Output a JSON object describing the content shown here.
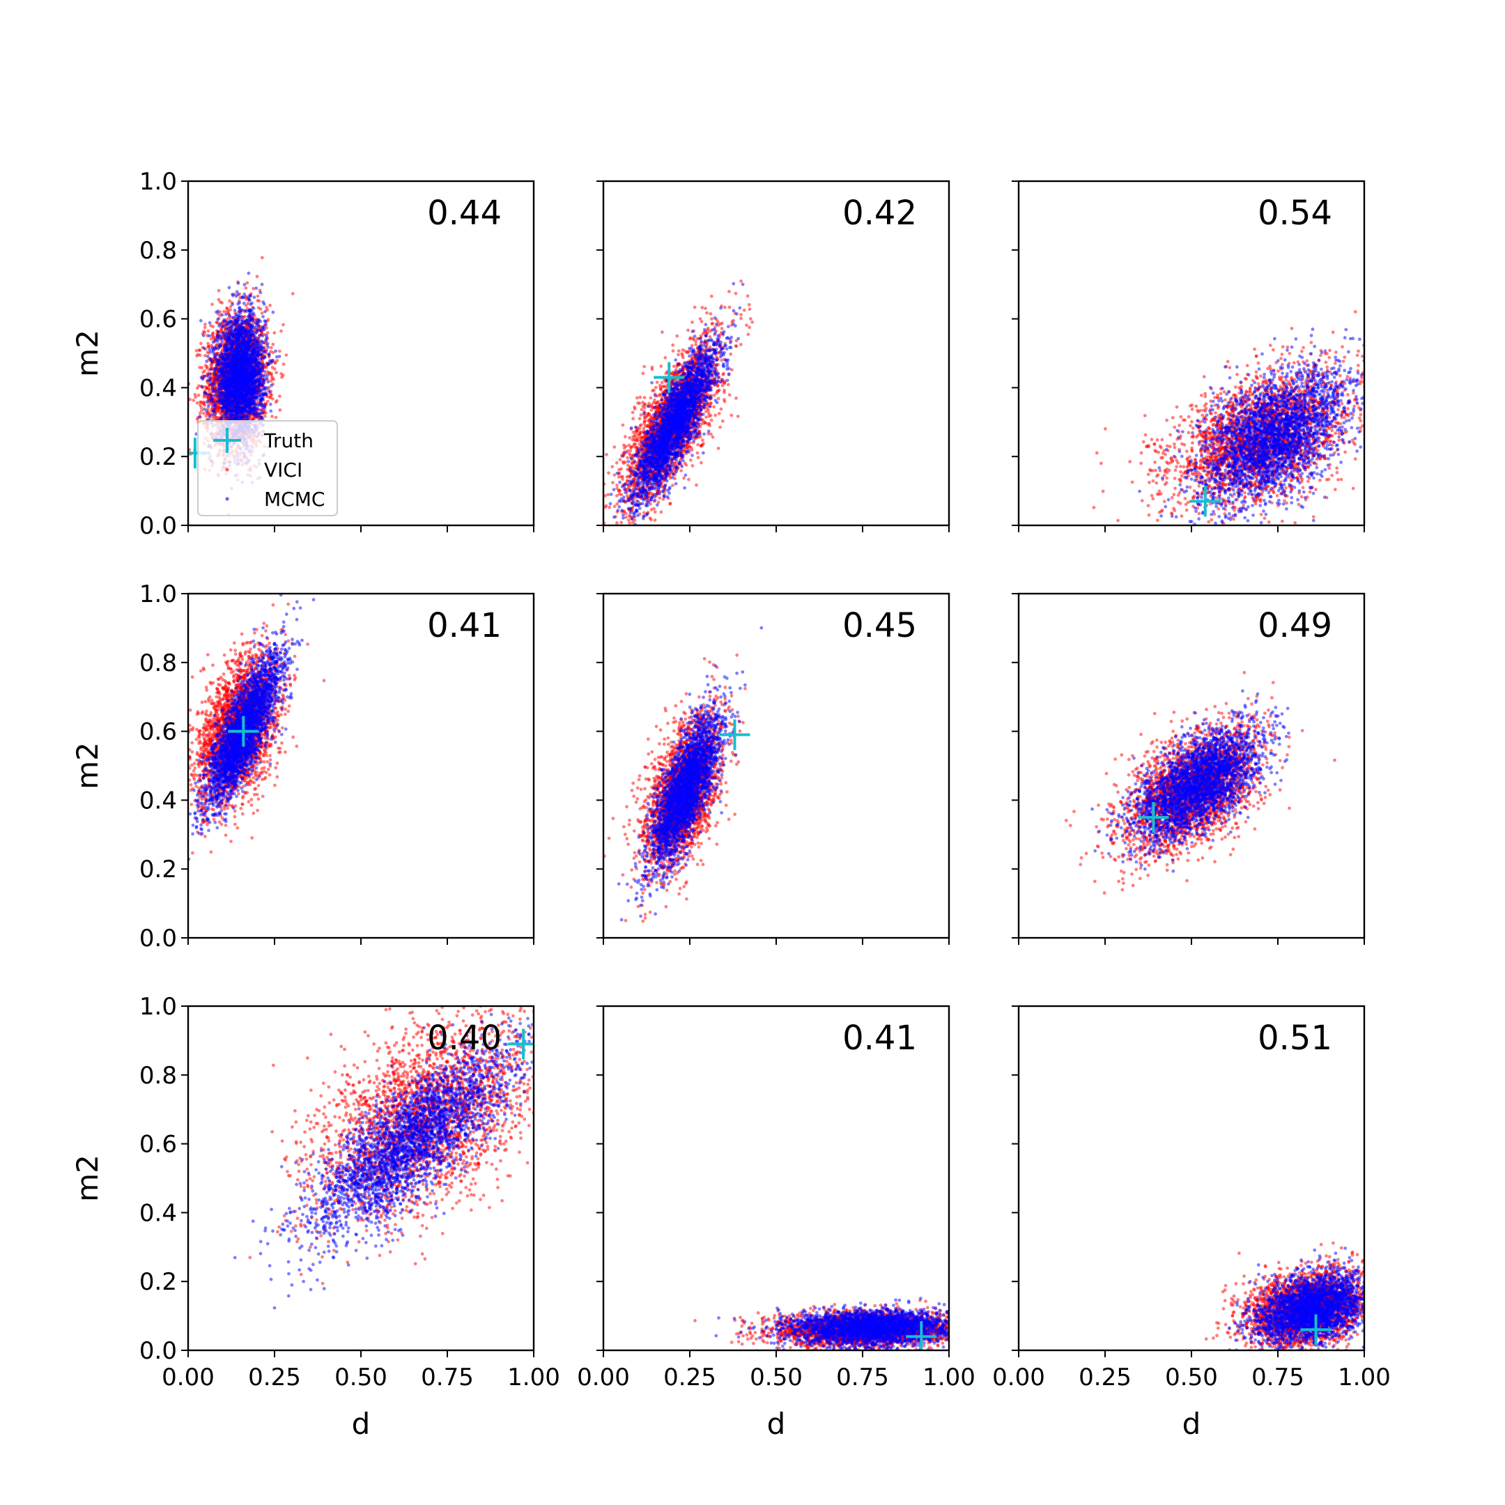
{
  "chart_data": {
    "type": "scatter",
    "layout": "3x3 grid",
    "xlabel": "d",
    "ylabel": "m2",
    "xlim": [
      0,
      1
    ],
    "ylim": [
      0,
      1
    ],
    "x_ticks": [
      "0.00",
      "0.25",
      "0.50",
      "0.75",
      "1.00"
    ],
    "y_ticks": [
      "0.0",
      "0.2",
      "0.4",
      "0.6",
      "0.8",
      "1.0"
    ],
    "grid": false,
    "legend": {
      "placement": "lower-left of first panel",
      "entries": [
        {
          "label": "Truth",
          "marker": "plus",
          "color": "#17becf"
        },
        {
          "label": "VICI",
          "marker": "dot",
          "color": "#ff0000"
        },
        {
          "label": "MCMC",
          "marker": "dot",
          "color": "#0000ff"
        }
      ]
    },
    "series_colors": {
      "VICI": "#ff0000",
      "MCMC": "#0000ff",
      "Truth": "#17becf"
    },
    "panels": [
      {
        "annotation": "0.44",
        "truth": [
          0.02,
          0.21
        ],
        "vici": {
          "center": [
            0.14,
            0.42
          ],
          "spread": [
            0.045,
            0.1
          ],
          "corr": 0.1
        },
        "mcmc": {
          "center": [
            0.15,
            0.43
          ],
          "spread": [
            0.035,
            0.09
          ],
          "corr": 0.1
        }
      },
      {
        "annotation": "0.42",
        "truth": [
          0.19,
          0.43
        ],
        "vici": {
          "center": [
            0.2,
            0.3
          ],
          "spread": [
            0.07,
            0.12
          ],
          "corr": 0.75
        },
        "mcmc": {
          "center": [
            0.21,
            0.3
          ],
          "spread": [
            0.06,
            0.11
          ],
          "corr": 0.85
        }
      },
      {
        "annotation": "0.54",
        "truth": [
          0.54,
          0.07
        ],
        "vici": {
          "center": [
            0.7,
            0.25
          ],
          "spread": [
            0.13,
            0.1
          ],
          "corr": 0.45
        },
        "mcmc": {
          "center": [
            0.74,
            0.26
          ],
          "spread": [
            0.11,
            0.1
          ],
          "corr": 0.55
        }
      },
      {
        "annotation": "0.41",
        "truth": [
          0.16,
          0.6
        ],
        "vici": {
          "center": [
            0.14,
            0.6
          ],
          "spread": [
            0.06,
            0.11
          ],
          "corr": 0.45
        },
        "mcmc": {
          "center": [
            0.16,
            0.6
          ],
          "spread": [
            0.055,
            0.11
          ],
          "corr": 0.8
        }
      },
      {
        "annotation": "0.45",
        "truth": [
          0.38,
          0.59
        ],
        "vici": {
          "center": [
            0.23,
            0.42
          ],
          "spread": [
            0.055,
            0.11
          ],
          "corr": 0.55
        },
        "mcmc": {
          "center": [
            0.24,
            0.43
          ],
          "spread": [
            0.05,
            0.11
          ],
          "corr": 0.75
        }
      },
      {
        "annotation": "0.49",
        "truth": [
          0.39,
          0.35
        ],
        "vici": {
          "center": [
            0.5,
            0.43
          ],
          "spread": [
            0.1,
            0.09
          ],
          "corr": 0.5
        },
        "mcmc": {
          "center": [
            0.52,
            0.45
          ],
          "spread": [
            0.09,
            0.08
          ],
          "corr": 0.6
        }
      },
      {
        "annotation": "0.40",
        "truth": [
          0.97,
          0.89
        ],
        "vici": {
          "center": [
            0.68,
            0.67
          ],
          "spread": [
            0.16,
            0.14
          ],
          "corr": 0.5
        },
        "mcmc": {
          "center": [
            0.64,
            0.6
          ],
          "spread": [
            0.15,
            0.14
          ],
          "corr": 0.8
        }
      },
      {
        "annotation": "0.41",
        "truth": [
          0.92,
          0.04
        ],
        "vici": {
          "center": [
            0.76,
            0.06
          ],
          "spread": [
            0.13,
            0.025
          ],
          "corr": 0.1
        },
        "mcmc": {
          "center": [
            0.78,
            0.065
          ],
          "spread": [
            0.12,
            0.025
          ],
          "corr": 0.1
        }
      },
      {
        "annotation": "0.51",
        "truth": [
          0.86,
          0.06
        ],
        "vici": {
          "center": [
            0.83,
            0.12
          ],
          "spread": [
            0.09,
            0.055
          ],
          "corr": 0.3
        },
        "mcmc": {
          "center": [
            0.85,
            0.12
          ],
          "spread": [
            0.08,
            0.05
          ],
          "corr": 0.3
        }
      }
    ]
  }
}
